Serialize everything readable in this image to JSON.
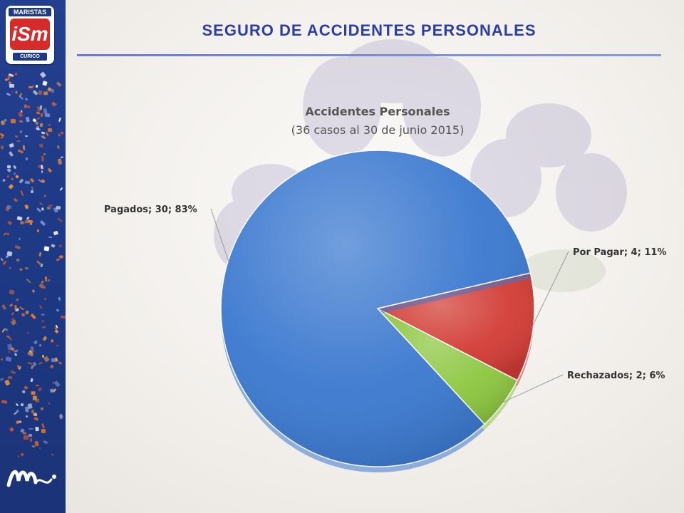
{
  "logo": {
    "top_text": "MARISTAS",
    "mark_text": "iSm",
    "bottom_text": "CURICO",
    "signature_text": "1m"
  },
  "page": {
    "title": "SEGURO DE ACCIDENTES PERSONALES"
  },
  "colors": {
    "title": "#2a3da8",
    "band": "#1e3a86",
    "pagados": "#3a78cf",
    "por_pagar": "#d23b34",
    "rechazados": "#8cc63f"
  },
  "chart_data": {
    "type": "pie",
    "title": "Accidentes Personales",
    "subtitle": "(36 casos al 30 de junio 2015)",
    "slices": [
      {
        "name": "Por Pagar",
        "value": 4,
        "percent": 11,
        "label": "Por Pagar; 4; 11%",
        "color": "#d23b34"
      },
      {
        "name": "Rechazados",
        "value": 2,
        "percent": 6,
        "label": "Rechazados; 2; 6%",
        "color": "#8cc63f"
      },
      {
        "name": "Pagados",
        "value": 30,
        "percent": 83,
        "label": "Pagados; 30; 83%",
        "color": "#3a78cf"
      }
    ]
  }
}
